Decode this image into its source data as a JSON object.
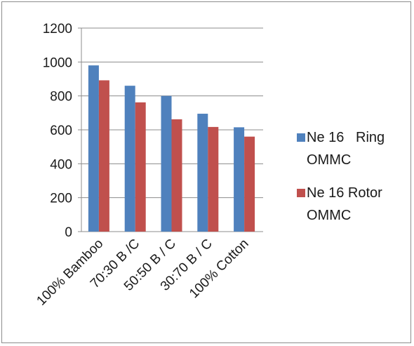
{
  "chart_data": {
    "type": "bar",
    "categories": [
      "100% Bamboo",
      "70:30 B /C",
      "50:50 B / C",
      "30:70 B / C",
      "100% Cotton"
    ],
    "series": [
      {
        "name": "Ne 16   Ring OMMC",
        "name_lines": [
          "Ne 16   Ring",
          "OMMC"
        ],
        "color": "#4F81BD",
        "values": [
          980,
          860,
          800,
          695,
          615
        ]
      },
      {
        "name": "Ne 16 Rotor OMMC",
        "name_lines": [
          "Ne 16 Rotor",
          "OMMC"
        ],
        "color": "#C0504D",
        "values": [
          892,
          762,
          662,
          617,
          560
        ]
      }
    ],
    "yticks": [
      "0",
      "200",
      "400",
      "600",
      "800",
      "1000",
      "1200"
    ],
    "ylim": [
      0,
      1200
    ],
    "grid": true,
    "legend_position": "right"
  }
}
